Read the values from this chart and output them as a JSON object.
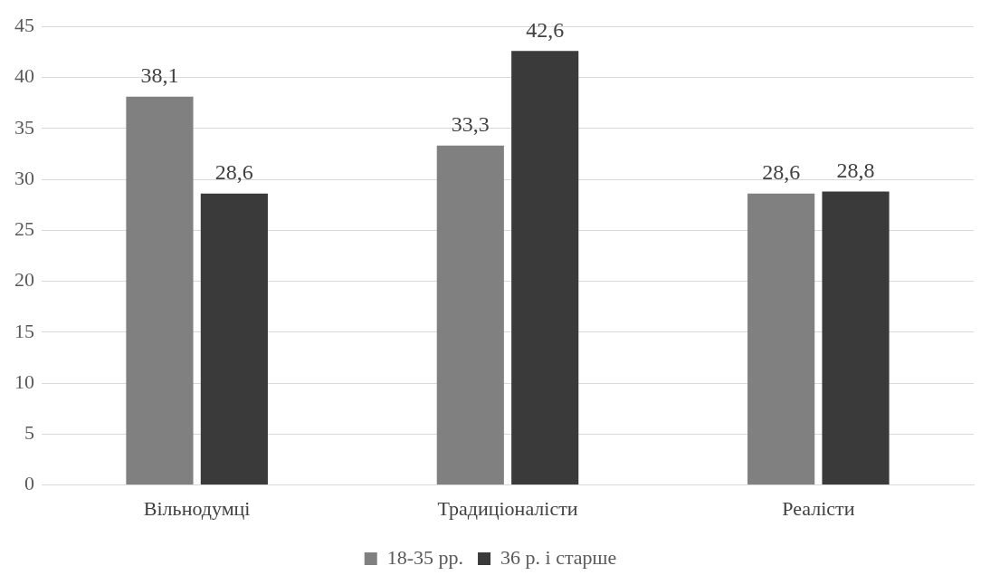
{
  "chart_data": {
    "type": "bar",
    "categories": [
      "Вільнодумці",
      "Традиціоналісти",
      "Реалісти"
    ],
    "series": [
      {
        "name": "18-35 рр.",
        "color": "#808080",
        "values": [
          38.1,
          33.3,
          28.6
        ],
        "value_labels": [
          "38,1",
          "33,3",
          "28,6"
        ]
      },
      {
        "name": "36 р. і старше",
        "color": "#3a3a3a",
        "values": [
          28.6,
          42.6,
          28.8
        ],
        "value_labels": [
          "28,6",
          "42,6",
          "28,8"
        ]
      }
    ],
    "ylim": [
      0,
      45
    ],
    "yticks": [
      0,
      5,
      10,
      15,
      20,
      25,
      30,
      35,
      40,
      45
    ],
    "grid": "y",
    "legend": "bottom"
  }
}
